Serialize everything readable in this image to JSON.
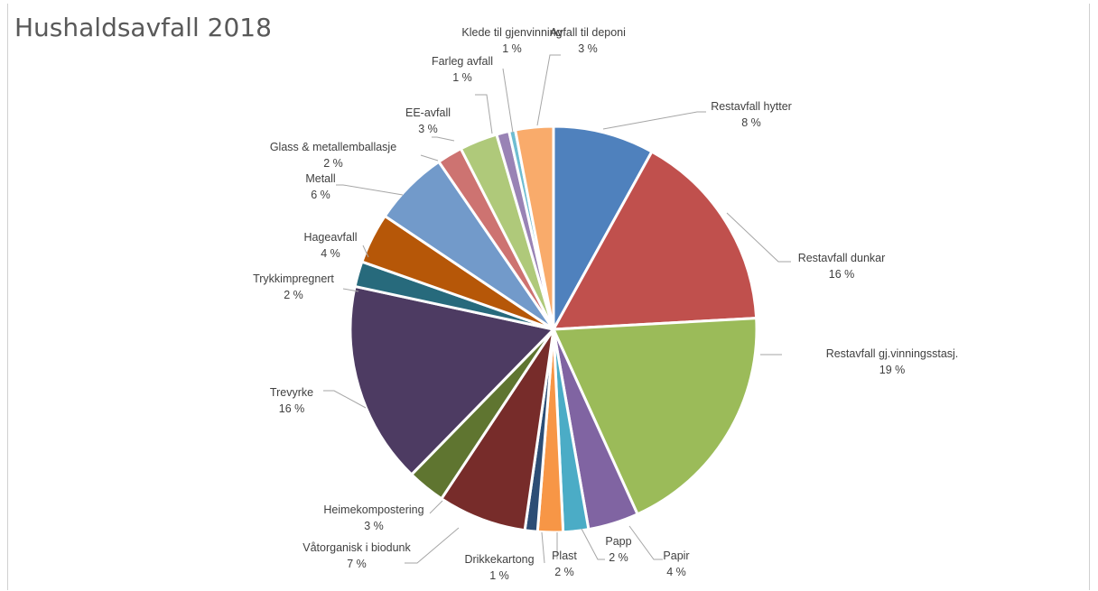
{
  "chart_data": {
    "type": "pie",
    "title": "Hushaldsavfall 2018",
    "slices": [
      {
        "name": "Restavfall hytter",
        "value": 8,
        "label": "8 %",
        "color": "#4F81BD"
      },
      {
        "name": "Restavfall dunkar",
        "value": 16,
        "label": "16 %",
        "color": "#C0504D"
      },
      {
        "name": "Restavfall gj.vinningsstasj.",
        "value": 19,
        "label": "19 %",
        "color": "#9BBB59"
      },
      {
        "name": "Papir",
        "value": 4,
        "label": "4 %",
        "color": "#8064A2"
      },
      {
        "name": "Papp",
        "value": 2,
        "label": "2 %",
        "color": "#4BACC6"
      },
      {
        "name": "Plast",
        "value": 2,
        "label": "2 %",
        "color": "#F79646"
      },
      {
        "name": "Drikkekartong",
        "value": 1,
        "label": "1 %",
        "color": "#2C4D75"
      },
      {
        "name": "Våtorganisk i biodunk",
        "value": 7,
        "label": "7 %",
        "color": "#772C2A"
      },
      {
        "name": "Heimekompostering",
        "value": 3,
        "label": "3 %",
        "color": "#5F7530"
      },
      {
        "name": "Trevyrke",
        "value": 16,
        "label": "16 %",
        "color": "#4D3B62"
      },
      {
        "name": "Trykkimpregnert",
        "value": 2,
        "label": "2 %",
        "color": "#276A7C"
      },
      {
        "name": "Hageavfall",
        "value": 4,
        "label": "4 %",
        "color": "#B65708"
      },
      {
        "name": "Metall",
        "value": 6,
        "label": "6 %",
        "color": "#729ACA"
      },
      {
        "name": "Glass & metallemballasje",
        "value": 2,
        "label": "2 %",
        "color": "#CD7371"
      },
      {
        "name": "EE-avfall",
        "value": 3,
        "label": "3 %",
        "color": "#AFC97A"
      },
      {
        "name": "Farleg avfall",
        "value": 1,
        "label": "1 %",
        "color": "#9983B5"
      },
      {
        "name": "Klede til gjenvinning",
        "value": 0.5,
        "label": "1 %",
        "color": "#6FBDD1"
      },
      {
        "name": "Avfall til deponi",
        "value": 3,
        "label": "3 %",
        "color": "#F9AB6B"
      }
    ]
  }
}
